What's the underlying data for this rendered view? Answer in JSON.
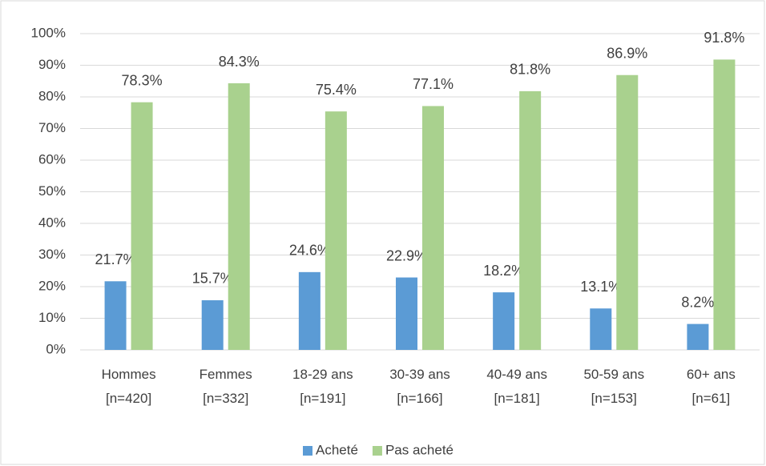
{
  "chart_data": {
    "type": "bar",
    "categories": [
      "Hommes\n[n=420]",
      "Femmes\n[n=332]",
      "18-29 ans\n[n=191]",
      "30-39 ans\n[n=166]",
      "40-49 ans\n[n=181]",
      "50-59 ans\n[n=153]",
      "60+ ans\n[n=61]"
    ],
    "series": [
      {
        "name": "Acheté",
        "color": "#5b9bd5",
        "values": [
          21.7,
          15.7,
          24.6,
          22.9,
          18.2,
          13.1,
          8.2
        ],
        "value_labels": [
          "21.7%",
          "15.7%",
          "24.6%",
          "22.9%",
          "18.2%",
          "13.1%",
          "8.2%"
        ]
      },
      {
        "name": "Pas acheté",
        "color": "#a9d18e",
        "values": [
          78.3,
          84.3,
          75.4,
          77.1,
          81.8,
          86.9,
          91.8
        ],
        "value_labels": [
          "78.3%",
          "84.3%",
          "75.4%",
          "77.1%",
          "81.8%",
          "86.9%",
          "91.8%"
        ]
      }
    ],
    "ylim": [
      0,
      100
    ],
    "yticks": [
      {
        "value": 0,
        "label": "0%"
      },
      {
        "value": 10,
        "label": "10%"
      },
      {
        "value": 20,
        "label": "20%"
      },
      {
        "value": 30,
        "label": "30%"
      },
      {
        "value": 40,
        "label": "40%"
      },
      {
        "value": 50,
        "label": "50%"
      },
      {
        "value": 60,
        "label": "60%"
      },
      {
        "value": 70,
        "label": "70%"
      },
      {
        "value": 80,
        "label": "80%"
      },
      {
        "value": 90,
        "label": "90%"
      },
      {
        "value": 100,
        "label": "100%"
      }
    ],
    "grid": true,
    "legend": "bottom"
  }
}
